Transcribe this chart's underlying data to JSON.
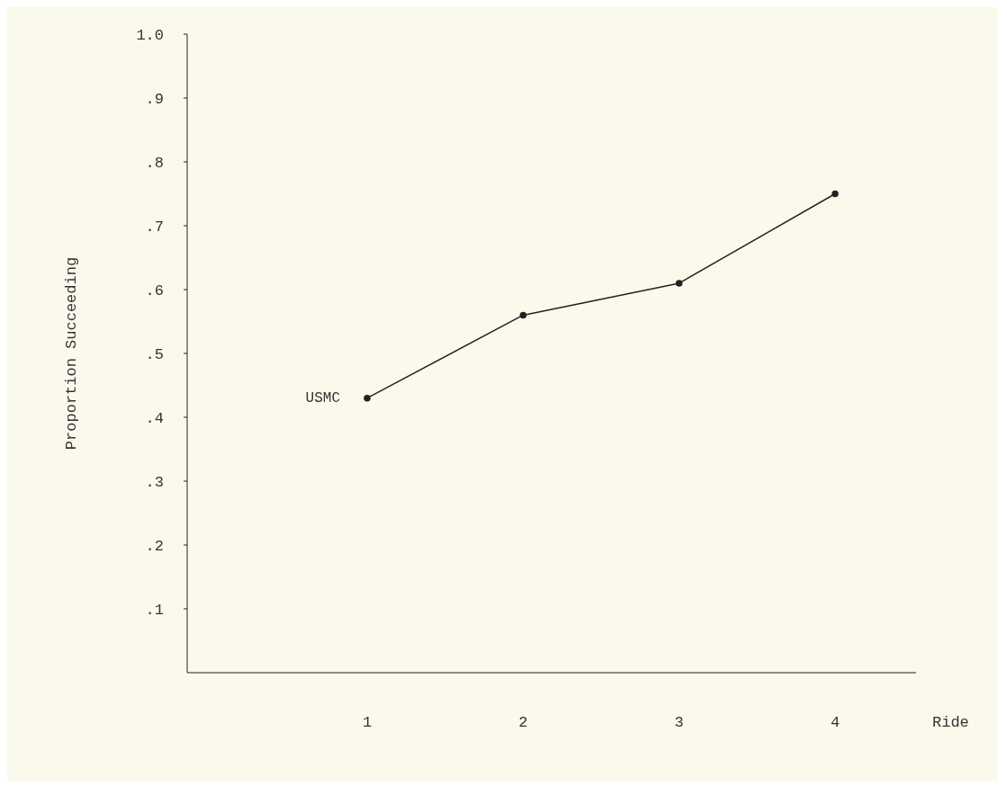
{
  "chart_data": {
    "type": "line",
    "xlabel": "Ride",
    "ylabel": "Proportion Succeeding",
    "categories": [
      "1",
      "2",
      "3",
      "4"
    ],
    "series": [
      {
        "name": "USMC",
        "color": "#222222",
        "values": [
          0.43,
          0.56,
          0.61,
          0.75
        ]
      }
    ],
    "ylim": [
      0,
      1
    ],
    "yticks": [
      {
        "value": 0.1,
        "label": ".1"
      },
      {
        "value": 0.2,
        "label": ".2"
      },
      {
        "value": 0.3,
        "label": ".3"
      },
      {
        "value": 0.4,
        "label": ".4"
      },
      {
        "value": 0.5,
        "label": ".5"
      },
      {
        "value": 0.6,
        "label": ".6"
      },
      {
        "value": 0.7,
        "label": ".7"
      },
      {
        "value": 0.8,
        "label": ".8"
      },
      {
        "value": 0.9,
        "label": ".9"
      },
      {
        "value": 1.0,
        "label": "1.0"
      }
    ],
    "marker": "circle",
    "line_style": "solid",
    "grid": false,
    "legend": false
  }
}
